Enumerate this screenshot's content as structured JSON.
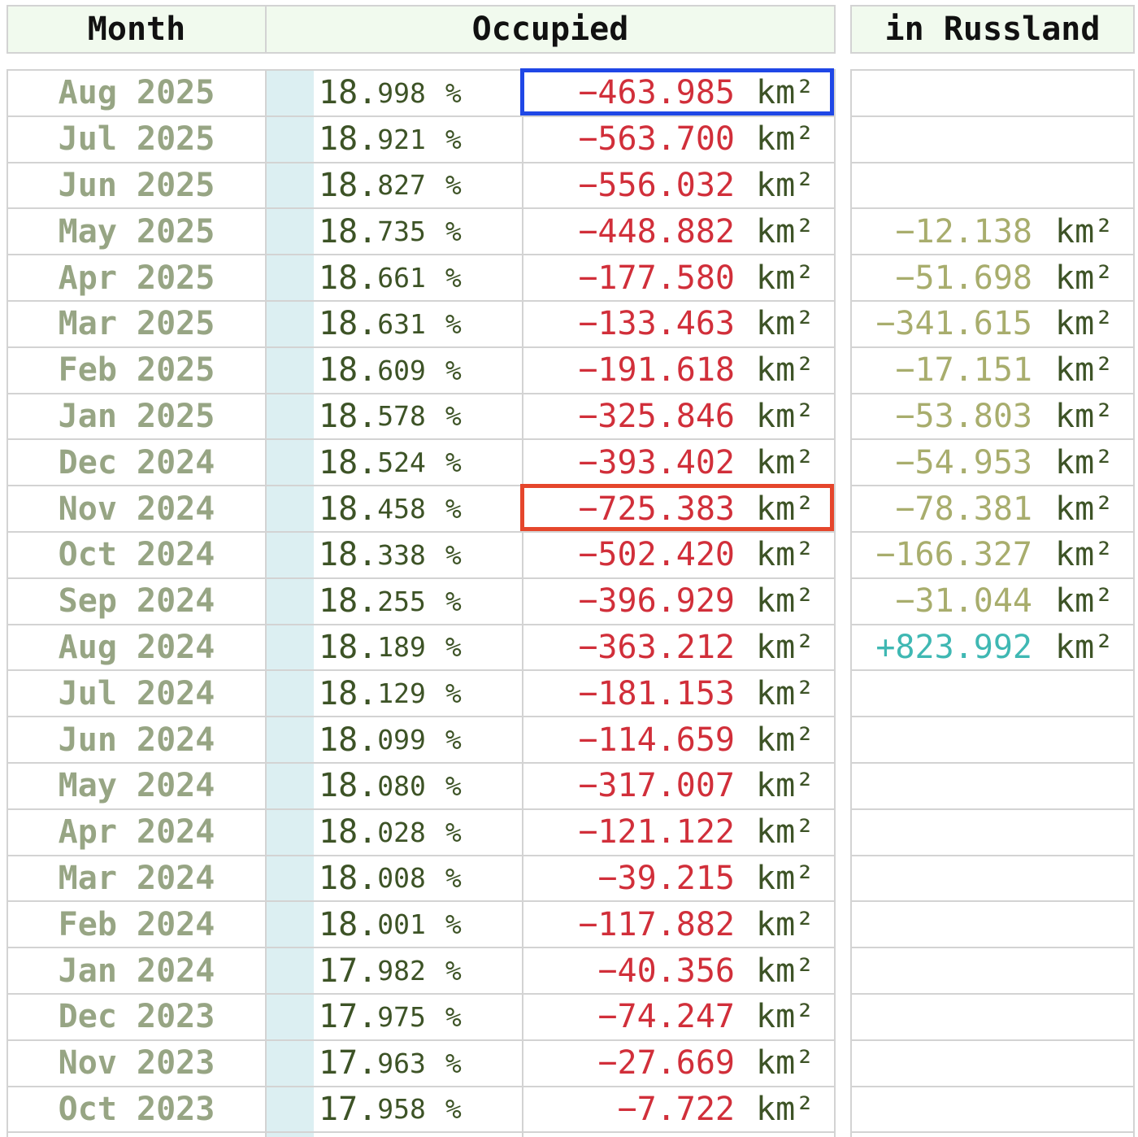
{
  "header": {
    "month_label": "Month",
    "occupied_label": "Occupied",
    "russland_label": "in Russland"
  },
  "unit_label": "km²",
  "percent_label": "%",
  "colors": {
    "month_text": "#97a584",
    "negative_change": "#d12f3a",
    "russland_negative": "#a8ad6d",
    "russland_positive": "#3fb8b3",
    "highlight_blue": "#1f47e6",
    "highlight_red": "#e5462c"
  },
  "highlights": [
    {
      "row": 0,
      "color": "#1f47e6"
    },
    {
      "row": 9,
      "color": "#e5462c"
    }
  ],
  "rows": [
    {
      "month": "Aug 2025",
      "pct_int": "18.",
      "pct_dec": "998",
      "change": "−463.985",
      "russland": ""
    },
    {
      "month": "Jul 2025",
      "pct_int": "18.",
      "pct_dec": "921",
      "change": "−563.700",
      "russland": ""
    },
    {
      "month": "Jun 2025",
      "pct_int": "18.",
      "pct_dec": "827",
      "change": "−556.032",
      "russland": ""
    },
    {
      "month": "May 2025",
      "pct_int": "18.",
      "pct_dec": "735",
      "change": "−448.882",
      "russland": "−12.138"
    },
    {
      "month": "Apr 2025",
      "pct_int": "18.",
      "pct_dec": "661",
      "change": "−177.580",
      "russland": "−51.698"
    },
    {
      "month": "Mar 2025",
      "pct_int": "18.",
      "pct_dec": "631",
      "change": "−133.463",
      "russland": "−341.615"
    },
    {
      "month": "Feb 2025",
      "pct_int": "18.",
      "pct_dec": "609",
      "change": "−191.618",
      "russland": "−17.151"
    },
    {
      "month": "Jan 2025",
      "pct_int": "18.",
      "pct_dec": "578",
      "change": "−325.846",
      "russland": "−53.803"
    },
    {
      "month": "Dec 2024",
      "pct_int": "18.",
      "pct_dec": "524",
      "change": "−393.402",
      "russland": "−54.953"
    },
    {
      "month": "Nov 2024",
      "pct_int": "18.",
      "pct_dec": "458",
      "change": "−725.383",
      "russland": "−78.381"
    },
    {
      "month": "Oct 2024",
      "pct_int": "18.",
      "pct_dec": "338",
      "change": "−502.420",
      "russland": "−166.327"
    },
    {
      "month": "Sep 2024",
      "pct_int": "18.",
      "pct_dec": "255",
      "change": "−396.929",
      "russland": "−31.044"
    },
    {
      "month": "Aug 2024",
      "pct_int": "18.",
      "pct_dec": "189",
      "change": "−363.212",
      "russland": "+823.992"
    },
    {
      "month": "Jul 2024",
      "pct_int": "18.",
      "pct_dec": "129",
      "change": "−181.153",
      "russland": ""
    },
    {
      "month": "Jun 2024",
      "pct_int": "18.",
      "pct_dec": "099",
      "change": "−114.659",
      "russland": ""
    },
    {
      "month": "May 2024",
      "pct_int": "18.",
      "pct_dec": "080",
      "change": "−317.007",
      "russland": ""
    },
    {
      "month": "Apr 2024",
      "pct_int": "18.",
      "pct_dec": "028",
      "change": "−121.122",
      "russland": ""
    },
    {
      "month": "Mar 2024",
      "pct_int": "18.",
      "pct_dec": "008",
      "change": "−39.215",
      "russland": ""
    },
    {
      "month": "Feb 2024",
      "pct_int": "18.",
      "pct_dec": "001",
      "change": "−117.882",
      "russland": ""
    },
    {
      "month": "Jan 2024",
      "pct_int": "17.",
      "pct_dec": "982",
      "change": "−40.356",
      "russland": ""
    },
    {
      "month": "Dec 2023",
      "pct_int": "17.",
      "pct_dec": "975",
      "change": "−74.247",
      "russland": ""
    },
    {
      "month": "Nov 2023",
      "pct_int": "17.",
      "pct_dec": "963",
      "change": "−27.669",
      "russland": ""
    },
    {
      "month": "Oct 2023",
      "pct_int": "17.",
      "pct_dec": "958",
      "change": "−7.722",
      "russland": ""
    }
  ]
}
